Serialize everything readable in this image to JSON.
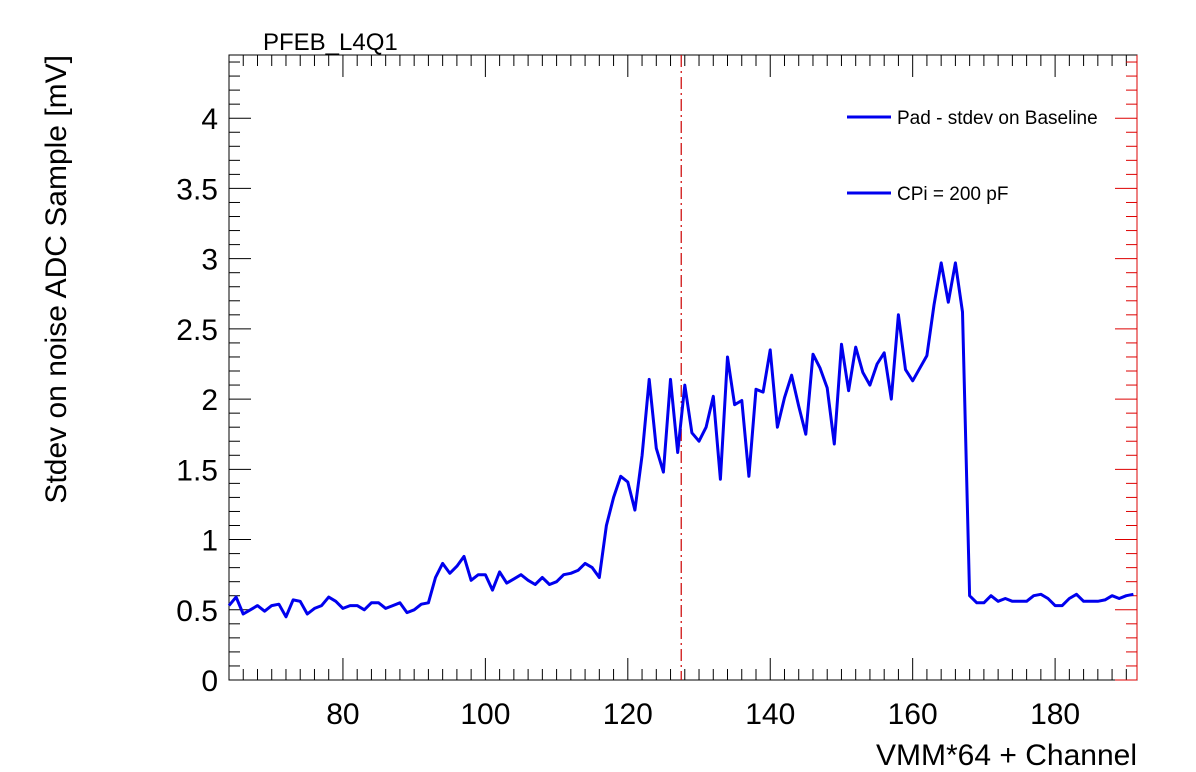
{
  "chart_data": {
    "type": "line",
    "title": "PFEB_L4Q1",
    "xlabel": "VMM*64 + Channel",
    "ylabel": "Stdev on noise ADC Sample [mV]",
    "xlim": [
      64,
      191.5
    ],
    "ylim": [
      0,
      4.45
    ],
    "x_ticks": [
      80,
      100,
      120,
      140,
      160,
      180
    ],
    "y_ticks": [
      0,
      0.5,
      1,
      1.5,
      2,
      2.5,
      3,
      3.5,
      4
    ],
    "x_tick_labels": [
      "80",
      "100",
      "120",
      "140",
      "160",
      "180"
    ],
    "y_tick_labels": [
      "0",
      "0.5",
      "1",
      "1.5",
      "2",
      "2.5",
      "3",
      "3.5",
      "4"
    ],
    "grid": false,
    "legend_position": "top-right",
    "series_color": "#0000ee",
    "marker_color": "#cc0000",
    "vertical_marker_x": 127.5,
    "legend": [
      "Pad - stdev on Baseline",
      "CPi = 200 pF"
    ],
    "x": [
      64,
      65,
      66,
      67,
      68,
      69,
      70,
      71,
      72,
      73,
      74,
      75,
      76,
      77,
      78,
      79,
      80,
      81,
      82,
      83,
      84,
      85,
      86,
      87,
      88,
      89,
      90,
      91,
      92,
      93,
      94,
      95,
      96,
      97,
      98,
      99,
      100,
      101,
      102,
      103,
      104,
      105,
      106,
      107,
      108,
      109,
      110,
      111,
      112,
      113,
      114,
      115,
      116,
      117,
      118,
      119,
      120,
      121,
      122,
      123,
      124,
      125,
      126,
      127,
      128,
      129,
      130,
      131,
      132,
      133,
      134,
      135,
      136,
      137,
      138,
      139,
      140,
      141,
      142,
      143,
      144,
      145,
      146,
      147,
      148,
      149,
      150,
      151,
      152,
      153,
      154,
      155,
      156,
      157,
      158,
      159,
      160,
      161,
      162,
      163,
      164,
      165,
      166,
      167,
      168,
      169,
      170,
      171,
      172,
      173,
      174,
      175,
      176,
      177,
      178,
      179,
      180,
      181,
      182,
      183,
      184,
      185,
      186,
      187,
      188,
      189,
      190,
      191
    ],
    "series": [
      {
        "name": "Pad - stdev on Baseline",
        "values": [
          0.53,
          0.59,
          0.47,
          0.5,
          0.53,
          0.49,
          0.53,
          0.54,
          0.45,
          0.57,
          0.56,
          0.47,
          0.51,
          0.53,
          0.59,
          0.56,
          0.51,
          0.53,
          0.53,
          0.5,
          0.55,
          0.55,
          0.51,
          0.53,
          0.55,
          0.48,
          0.5,
          0.54,
          0.55,
          0.73,
          0.83,
          0.76,
          0.81,
          0.88,
          0.71,
          0.75,
          0.75,
          0.64,
          0.77,
          0.69,
          0.72,
          0.75,
          0.71,
          0.68,
          0.73,
          0.68,
          0.7,
          0.75,
          0.76,
          0.78,
          0.83,
          0.8,
          0.73,
          1.1,
          1.3,
          1.45,
          1.41,
          1.21,
          1.6,
          2.14,
          1.65,
          1.48,
          2.14,
          1.62,
          2.1,
          1.76,
          1.7,
          1.8,
          2.02,
          1.43,
          2.3,
          1.96,
          1.99,
          1.45,
          2.07,
          2.05,
          2.35,
          1.8,
          2.01,
          2.17,
          1.95,
          1.75,
          2.32,
          2.22,
          2.08,
          1.68,
          2.39,
          2.06,
          2.37,
          2.19,
          2.1,
          2.25,
          2.33,
          2.0,
          2.6,
          2.21,
          2.13,
          2.22,
          2.31,
          2.67,
          2.97,
          2.69,
          2.97,
          2.62,
          0.6,
          0.55,
          0.55,
          0.6,
          0.56,
          0.58,
          0.56,
          0.56,
          0.56,
          0.6,
          0.61,
          0.58,
          0.53,
          0.53,
          0.58,
          0.61,
          0.56,
          0.56,
          0.56,
          0.57,
          0.6,
          0.58,
          0.6,
          0.61
        ]
      }
    ]
  }
}
